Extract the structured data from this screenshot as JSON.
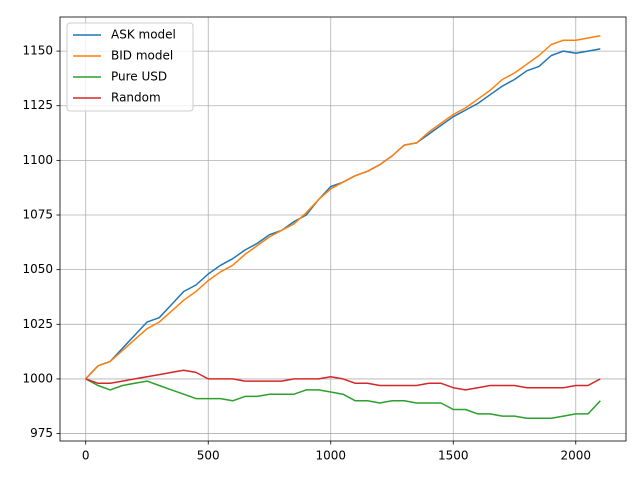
{
  "chart_data": {
    "type": "line",
    "x": [
      0,
      50,
      100,
      150,
      200,
      250,
      300,
      350,
      400,
      450,
      500,
      550,
      600,
      650,
      700,
      750,
      800,
      850,
      900,
      950,
      1000,
      1050,
      1100,
      1150,
      1200,
      1250,
      1300,
      1350,
      1400,
      1450,
      1500,
      1550,
      1600,
      1650,
      1700,
      1750,
      1800,
      1850,
      1900,
      1950,
      2000,
      2050,
      2100
    ],
    "series": [
      {
        "name": "ASK model",
        "color": "#1f77b4",
        "values": [
          1000,
          1006,
          1008,
          1014,
          1020,
          1026,
          1028,
          1034,
          1040,
          1043,
          1048,
          1052,
          1055,
          1059,
          1062,
          1066,
          1068,
          1072,
          1075,
          1082,
          1088,
          1090,
          1093,
          1095,
          1098,
          1102,
          1107,
          1108,
          1112,
          1116,
          1120,
          1123,
          1126,
          1130,
          1134,
          1137,
          1141,
          1143,
          1148,
          1150,
          1149,
          1150,
          1151
        ]
      },
      {
        "name": "BID model",
        "color": "#ff7f0e",
        "values": [
          1000,
          1006,
          1008,
          1013,
          1018,
          1023,
          1026,
          1031,
          1036,
          1040,
          1045,
          1049,
          1052,
          1057,
          1061,
          1065,
          1068,
          1071,
          1076,
          1082,
          1087,
          1090,
          1093,
          1095,
          1098,
          1102,
          1107,
          1108,
          1113,
          1117,
          1121,
          1124,
          1128,
          1132,
          1137,
          1140,
          1144,
          1148,
          1153,
          1155,
          1155,
          1156,
          1157
        ]
      },
      {
        "name": "Pure USD",
        "color": "#2ca02c",
        "values": [
          1000,
          997,
          995,
          997,
          998,
          999,
          997,
          995,
          993,
          991,
          991,
          991,
          990,
          992,
          992,
          993,
          993,
          993,
          995,
          995,
          994,
          993,
          990,
          990,
          989,
          990,
          990,
          989,
          989,
          989,
          986,
          986,
          984,
          984,
          983,
          983,
          982,
          982,
          982,
          983,
          984,
          984,
          990
        ]
      },
      {
        "name": "Random",
        "color": "#d62728",
        "values": [
          1000,
          998,
          998,
          999,
          1000,
          1001,
          1002,
          1003,
          1004,
          1003,
          1000,
          1000,
          1000,
          999,
          999,
          999,
          999,
          1000,
          1000,
          1000,
          1001,
          1000,
          998,
          998,
          997,
          997,
          997,
          997,
          998,
          998,
          996,
          995,
          996,
          997,
          997,
          997,
          996,
          996,
          996,
          996,
          997,
          997,
          1000
        ]
      }
    ],
    "xlim": [
      -105,
      2205
    ],
    "ylim": [
      971.6,
      1165.6
    ],
    "xticks": [
      0,
      500,
      1000,
      1500,
      2000
    ],
    "yticks": [
      975,
      1000,
      1025,
      1050,
      1075,
      1100,
      1125,
      1150
    ],
    "grid": true,
    "legend": "upper-left"
  }
}
